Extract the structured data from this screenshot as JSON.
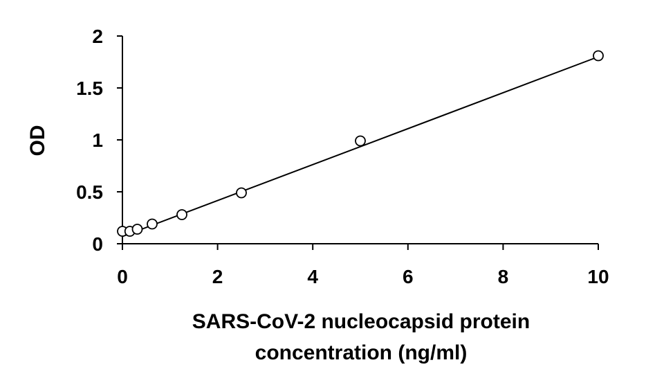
{
  "chart_data": {
    "type": "scatter",
    "title": "",
    "xlabel_lines": [
      "SARS-CoV-2 nucleocapsid protein",
      "concentration (ng/ml)"
    ],
    "ylabel": "OD",
    "xlim": [
      0,
      10
    ],
    "ylim": [
      0,
      2
    ],
    "x_ticks": [
      "0",
      "2",
      "4",
      "6",
      "8",
      "10"
    ],
    "y_ticks": [
      "0",
      "0.5",
      "1",
      "1.5",
      "2"
    ],
    "grid": false,
    "legend": false,
    "series": [
      {
        "x": [
          0,
          0.156,
          0.3125,
          0.625,
          1.25,
          2.5,
          5,
          10
        ],
        "y": [
          0.12,
          0.12,
          0.14,
          0.19,
          0.28,
          0.49,
          0.99,
          1.81
        ]
      }
    ],
    "trendline": {
      "type": "linear",
      "x": [
        0,
        10
      ],
      "y": [
        0.07,
        1.8
      ]
    },
    "marker_color": "#ffffff",
    "marker_edge_color": "#000000",
    "line_color": "#000000"
  }
}
